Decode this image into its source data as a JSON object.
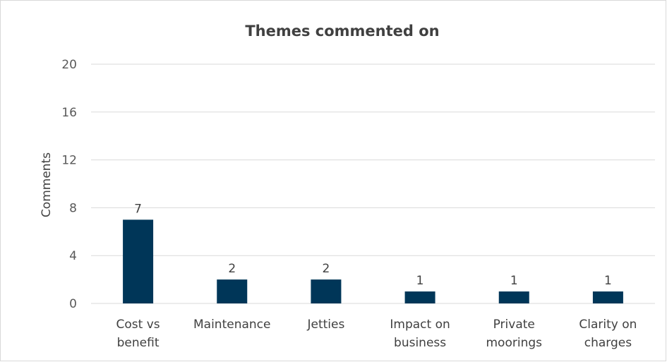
{
  "chart_data": {
    "type": "bar",
    "title": "Themes commented on",
    "xlabel": "",
    "ylabel": "Comments",
    "categories": [
      [
        "Cost vs",
        "benefit"
      ],
      [
        "Maintenance"
      ],
      [
        "Jetties"
      ],
      [
        "Impact on",
        "business"
      ],
      [
        "Private",
        "moorings"
      ],
      [
        "Clarity on",
        "charges"
      ]
    ],
    "values": [
      7,
      2,
      2,
      1,
      1,
      1
    ],
    "ylim": [
      0,
      20
    ],
    "yticks": [
      0,
      4,
      8,
      12,
      16,
      20
    ],
    "grid": true,
    "data_labels": true,
    "bar_color": "#003658",
    "grid_color": "#d9d9d9"
  }
}
